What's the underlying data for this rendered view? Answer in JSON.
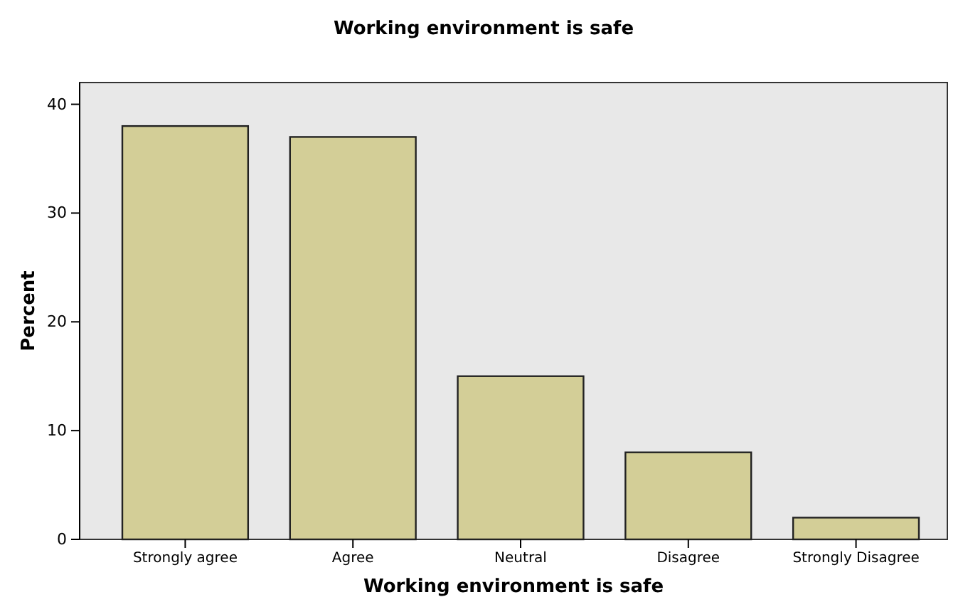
{
  "chart_data": {
    "type": "bar",
    "title": "Working environment is safe",
    "xlabel": "Working environment is safe",
    "ylabel": "Percent",
    "categories": [
      "Strongly agree",
      "Agree",
      "Neutral",
      "Disagree",
      "Strongly Disagree"
    ],
    "values": [
      38,
      37,
      15,
      8,
      2
    ],
    "color": "#d3ce97",
    "ylim": [
      0,
      42
    ],
    "yticks": [
      0,
      10,
      20,
      30,
      40
    ]
  }
}
